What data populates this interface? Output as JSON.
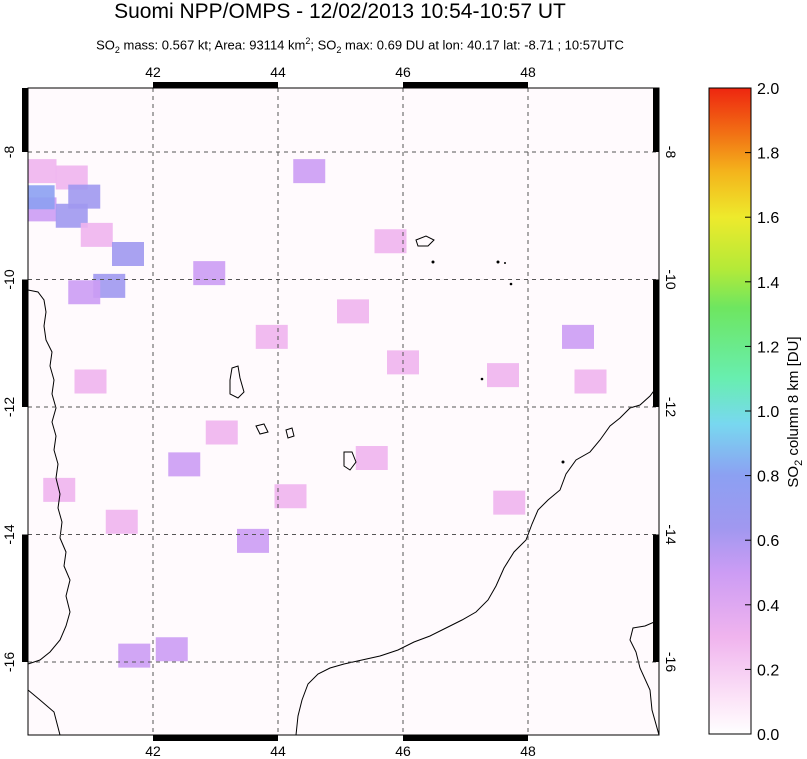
{
  "title": "Suomi NPP/OMPS - 12/02/2013 10:54-10:57 UT",
  "subtitle": {
    "so2_prefix": "SO",
    "so2_sub": "2",
    "mass_text": " mass: 0.567 kt; Area: 93114 km",
    "area_sup": "2",
    "max_prefix": "; SO",
    "max_sub": "2",
    "max_text": " max: 0.69 DU at lon: 40.17 lat: -8.71 ; 10:57UTC"
  },
  "colorbar": {
    "label_prefix": "SO",
    "label_sub": "2",
    "label_rest": " column 8 km [DU]",
    "ticks": [
      "2.0",
      "1.8",
      "1.6",
      "1.4",
      "1.2",
      "1.0",
      "0.8",
      "0.6",
      "0.4",
      "0.2",
      "0.0"
    ],
    "colors": [
      "#ffffff",
      "#fce6f8",
      "#f0b4ee",
      "#cc9cf4",
      "#a098f0",
      "#8ca0f2",
      "#78d8f0",
      "#68eeb0",
      "#6ee660",
      "#b4ea38",
      "#eeea2c",
      "#f4b41c",
      "#f27014",
      "#ee2610"
    ]
  },
  "chart_data": {
    "type": "heatmap",
    "title": "Suomi NPP/OMPS - 12/02/2013 10:54-10:57 UT",
    "x_ticks": [
      "42",
      "44",
      "46",
      "48"
    ],
    "y_ticks": [
      "-8",
      "-10",
      "-12",
      "-14",
      "-16"
    ],
    "x_tick_values": [
      42,
      44,
      46,
      48
    ],
    "y_tick_values": [
      -8,
      -10,
      -12,
      -14,
      -16
    ],
    "xlim": [
      40.0,
      50.0
    ],
    "ylim": [
      -17.2,
      -8.0
    ],
    "grid": true,
    "value_range": [
      0.0,
      2.0
    ],
    "colorbar_label": "SO2 column 8 km [DU]",
    "cells": [
      {
        "lon": 40.2,
        "lat": -8.3,
        "v": 0.3
      },
      {
        "lon": 40.7,
        "lat": -8.4,
        "v": 0.25
      },
      {
        "lon": 40.9,
        "lat": -8.7,
        "v": 0.55
      },
      {
        "lon": 40.2,
        "lat": -8.9,
        "v": 0.5
      },
      {
        "lon": 40.17,
        "lat": -8.71,
        "v": 0.69
      },
      {
        "lon": 40.7,
        "lat": -9.0,
        "v": 0.6
      },
      {
        "lon": 41.1,
        "lat": -9.3,
        "v": 0.3
      },
      {
        "lon": 41.6,
        "lat": -9.6,
        "v": 0.58
      },
      {
        "lon": 41.3,
        "lat": -10.1,
        "v": 0.62
      },
      {
        "lon": 40.9,
        "lat": -10.2,
        "v": 0.45
      },
      {
        "lon": 42.9,
        "lat": -9.9,
        "v": 0.5
      },
      {
        "lon": 44.5,
        "lat": -8.3,
        "v": 0.35
      },
      {
        "lon": 45.8,
        "lat": -9.4,
        "v": 0.3
      },
      {
        "lon": 48.8,
        "lat": -10.9,
        "v": 0.35
      },
      {
        "lon": 42.3,
        "lat": -15.8,
        "v": 0.45
      },
      {
        "lon": 41.7,
        "lat": -15.9,
        "v": 0.35
      },
      {
        "lon": 43.6,
        "lat": -14.1,
        "v": 0.35
      },
      {
        "lon": 42.5,
        "lat": -12.9,
        "v": 0.35
      },
      {
        "lon": 45.5,
        "lat": -12.8,
        "v": 0.3
      },
      {
        "lon": 46.0,
        "lat": -11.3,
        "v": 0.2
      },
      {
        "lon": 47.6,
        "lat": -11.5,
        "v": 0.18
      },
      {
        "lon": 49.0,
        "lat": -11.6,
        "v": 0.15
      },
      {
        "lon": 41.5,
        "lat": -13.8,
        "v": 0.25
      },
      {
        "lon": 43.1,
        "lat": -12.4,
        "v": 0.22
      },
      {
        "lon": 44.2,
        "lat": -13.4,
        "v": 0.2
      },
      {
        "lon": 47.7,
        "lat": -13.5,
        "v": 0.18
      },
      {
        "lon": 41.0,
        "lat": -11.6,
        "v": 0.15
      },
      {
        "lon": 40.5,
        "lat": -13.3,
        "v": 0.12
      },
      {
        "lon": 43.9,
        "lat": -10.9,
        "v": 0.15
      },
      {
        "lon": 45.2,
        "lat": -10.5,
        "v": 0.12
      }
    ]
  }
}
